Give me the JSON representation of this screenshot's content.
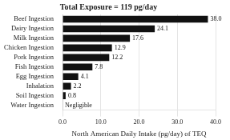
{
  "chart_data": {
    "type": "bar",
    "orientation": "horizontal",
    "title": "Total Exposure = 119 pg/day",
    "xlabel": "North American Daily Intake (pg/day) of TEQ",
    "categories": [
      "Water Ingestion",
      "Soil Ingestion",
      "Inhalation",
      "Egg Ingestion",
      "Fish Ingestion",
      "Pork Ingestion",
      "Chicken Ingestion",
      "Milk Ingestion",
      "Dairy Ingestion",
      "Beef Ingestion"
    ],
    "values": [
      0.0,
      0.8,
      2.2,
      4.1,
      7.8,
      12.2,
      12.9,
      17.6,
      24.1,
      38.0
    ],
    "value_labels": [
      "Negligible",
      "0.8",
      "2.2",
      "4.1",
      "7.8",
      "12.2",
      "12.9",
      "17.6",
      "24.1",
      "38.0"
    ],
    "data_labels": true,
    "color": "#111111",
    "xlim": [
      0,
      40
    ],
    "xticks": [
      {
        "value": 0,
        "label": "0.0"
      },
      {
        "value": 10,
        "label": "10.0"
      },
      {
        "value": 20,
        "label": "20.0"
      },
      {
        "value": 30,
        "label": "30.0"
      },
      {
        "value": 40,
        "label": "40.0"
      }
    ],
    "grid": true
  }
}
